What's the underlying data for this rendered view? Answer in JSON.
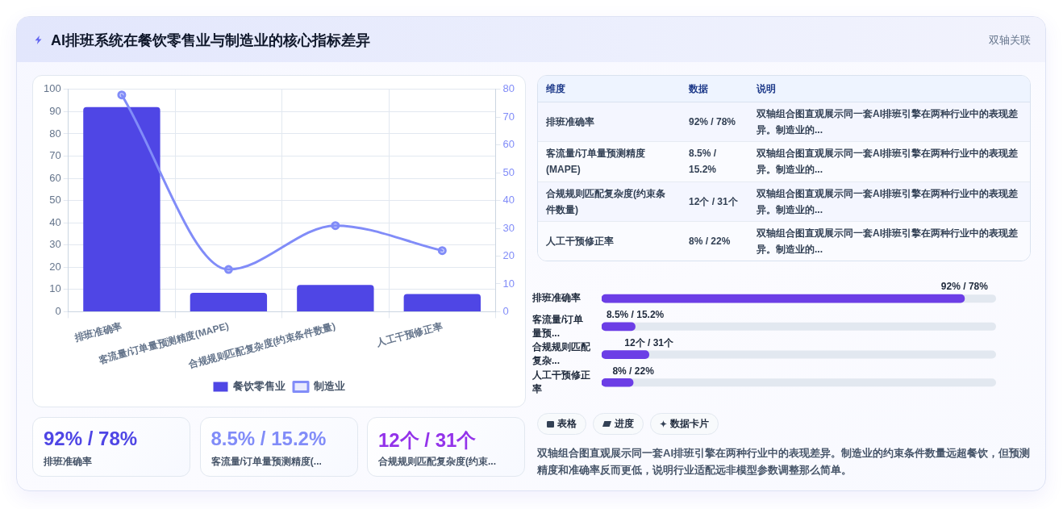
{
  "chart_data": [
    {
      "type": "bar",
      "title": "AI排班系统在餐饮零售业与制造业的核心指标差异",
      "annotations": [
        "双轴关联"
      ],
      "categories": [
        "排班准确率",
        "客流量/订单量预测精度(MAPE)",
        "合规规则匹配复杂度(约束条件数量)",
        "人工干预修正率"
      ],
      "series": [
        {
          "name": "餐饮零售业",
          "type": "bar",
          "color": "#4f46e5",
          "values": [
            92,
            8.5,
            12,
            8
          ]
        },
        {
          "name": "制造业",
          "type": "line",
          "axis": "y2",
          "color": "#818cf8",
          "values": [
            78,
            15.2,
            31,
            22
          ]
        }
      ],
      "ylim": [
        0,
        100
      ],
      "yticks": [
        0,
        10,
        20,
        30,
        40,
        50,
        60,
        70,
        80,
        90,
        100
      ],
      "y2lim": [
        0,
        80
      ],
      "y2ticks": [
        0,
        10,
        20,
        30,
        40,
        50,
        60,
        70,
        80
      ],
      "grid": true,
      "legend": "bottom",
      "marker": "circle"
    },
    {
      "type": "other",
      "annotations": [
        "维度",
        "数据",
        "说明",
        "排班准确率",
        "92% / 78%",
        "双轴组合图直观展示同一套AI排班引擎在两种行业中的表现差异。制造业的...",
        "客流量/订单量预测精度(MAPE)",
        "8.5% / 15.2%",
        "双轴组合图直观展示同一套AI排班引擎在两种行业中的表现差异。制造业的...",
        "合规规则匹配复杂度(约束条件数量)",
        "12个 / 31个",
        "双轴组合图直观展示同一套AI排班引擎在两种行业中的表现差异。制造业的...",
        "人工干预修正率",
        "8% / 22%",
        "双轴组合图直观展示同一套AI排班引擎在两种行业中的表现差异。制造业的..."
      ]
    },
    {
      "type": "bar",
      "orientation": "horizontal",
      "categories": [
        "排班准确率",
        "客流量/订单量预...",
        "合规规则匹配复杂...",
        "人工干预修正率"
      ],
      "values": [
        92,
        8.5,
        12,
        8
      ],
      "value_labels": [
        "92% / 78%",
        "8.5% / 15.2%",
        "12个 / 31个",
        "8% / 22%"
      ],
      "color": "#6c3ee6",
      "xlim": [
        0,
        100
      ],
      "tick_labels": "y"
    },
    {
      "type": "other",
      "annotations": [
        "92% / 78%",
        "排班准确率",
        "8.5% / 15.2%",
        "客流量/订单量预测精度(...",
        "12个 / 31个",
        "合规规则匹配复杂度(约束..."
      ],
      "colors": [
        "#4f46e5",
        "#818cf8",
        "#9333ea"
      ]
    },
    {
      "type": "other",
      "annotations": [
        "表格",
        "进度",
        "数据卡片",
        "双轴组合图直观展示同一套AI排班引擎在两种行业中的表现差异。制造业的约束条件数量远超餐饮，但预测精度和准确率反而更低，说明行业适配远非模型参数调整那么简单。"
      ]
    }
  ]
}
